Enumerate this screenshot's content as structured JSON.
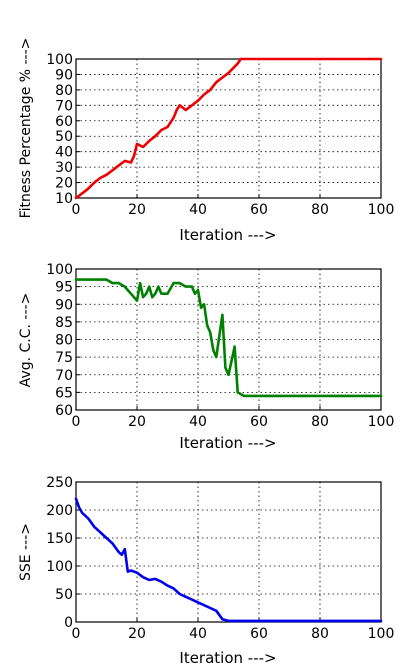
{
  "chart_data": [
    {
      "type": "line",
      "xlabel": "Iteration --->",
      "ylabel": "Fitness Percentage % --->",
      "xlim": [
        0,
        100
      ],
      "ylim": [
        10,
        100
      ],
      "xticks": [
        0,
        20,
        40,
        60,
        80,
        100
      ],
      "yticks": [
        10,
        20,
        30,
        40,
        50,
        60,
        70,
        80,
        90,
        100
      ],
      "grid": true,
      "color": "#ee0000",
      "x": [
        0,
        2,
        4,
        6,
        8,
        10,
        12,
        14,
        16,
        18,
        19,
        20,
        22,
        24,
        26,
        28,
        30,
        32,
        33,
        34,
        36,
        38,
        40,
        42,
        44,
        46,
        48,
        50,
        52,
        53,
        54,
        60,
        70,
        80,
        90,
        100
      ],
      "y": [
        10,
        13,
        16,
        20,
        23,
        25,
        28,
        31,
        34,
        33,
        37,
        45,
        43,
        47,
        50,
        54,
        56,
        62,
        67,
        70,
        67,
        70,
        73,
        77,
        80,
        85,
        88,
        91,
        95,
        97,
        100,
        100,
        100,
        100,
        100,
        100
      ]
    },
    {
      "type": "line",
      "xlabel": "Iteration --->",
      "ylabel": "Avg. C.C. --->",
      "xlim": [
        0,
        100
      ],
      "ylim": [
        60,
        100
      ],
      "xticks": [
        0,
        20,
        40,
        60,
        80,
        100
      ],
      "yticks": [
        60,
        65,
        70,
        75,
        80,
        85,
        90,
        95,
        100
      ],
      "grid": true,
      "color": "#008000",
      "x": [
        0,
        5,
        10,
        12,
        14,
        16,
        18,
        20,
        21,
        22,
        23,
        24,
        25,
        26,
        27,
        28,
        30,
        32,
        34,
        36,
        38,
        39,
        40,
        41,
        42,
        43,
        44,
        45,
        46,
        47,
        48,
        49,
        50,
        51,
        52,
        53,
        55,
        60,
        70,
        80,
        90,
        100
      ],
      "y": [
        97,
        97,
        97,
        96,
        96,
        95,
        93,
        91,
        96,
        92,
        93,
        95,
        92,
        93,
        95,
        93,
        93,
        96,
        96,
        95,
        95,
        93,
        94,
        89,
        90,
        84,
        82,
        77,
        75,
        81,
        87,
        72,
        70,
        74,
        78,
        65,
        64,
        64,
        64,
        64,
        64,
        64
      ]
    },
    {
      "type": "line",
      "xlabel": "Iteration --->",
      "ylabel": "SSE --->",
      "xlim": [
        0,
        100
      ],
      "ylim": [
        0,
        250
      ],
      "xticks": [
        0,
        20,
        40,
        60,
        80,
        100
      ],
      "yticks": [
        0,
        50,
        100,
        150,
        200,
        250
      ],
      "grid": true,
      "color": "#0000ee",
      "x": [
        0,
        1,
        2,
        4,
        6,
        8,
        10,
        12,
        14,
        15,
        16,
        17,
        18,
        20,
        22,
        24,
        26,
        28,
        30,
        32,
        34,
        36,
        38,
        40,
        42,
        44,
        46,
        48,
        50,
        55,
        60,
        70,
        80,
        90,
        100
      ],
      "y": [
        220,
        205,
        195,
        185,
        170,
        160,
        150,
        140,
        125,
        120,
        130,
        90,
        92,
        88,
        80,
        75,
        77,
        72,
        65,
        60,
        50,
        45,
        40,
        35,
        30,
        25,
        20,
        5,
        2,
        2,
        2,
        2,
        2,
        2,
        2
      ]
    }
  ]
}
